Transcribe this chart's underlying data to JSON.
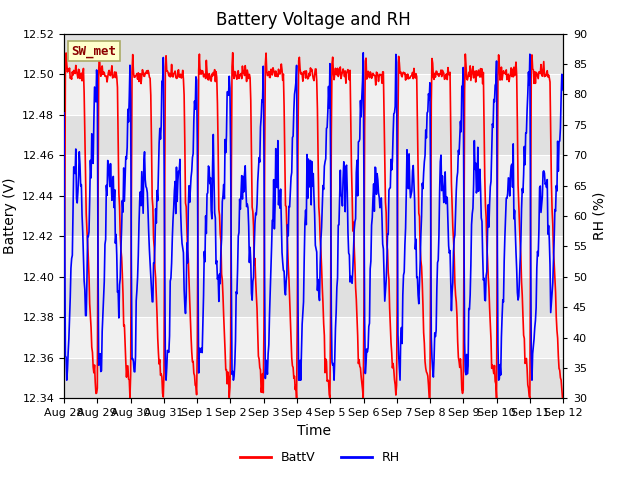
{
  "title": "Battery Voltage and RH",
  "xlabel": "Time",
  "ylabel_left": "Battery (V)",
  "ylabel_right": "RH (%)",
  "legend_label": "SW_met",
  "series": [
    "BattV",
    "RH"
  ],
  "series_colors": [
    "red",
    "blue"
  ],
  "left_ylim": [
    12.34,
    12.52
  ],
  "right_ylim": [
    30,
    90
  ],
  "left_yticks": [
    12.34,
    12.36,
    12.38,
    12.4,
    12.42,
    12.44,
    12.46,
    12.48,
    12.5,
    12.52
  ],
  "right_yticks": [
    30,
    35,
    40,
    45,
    50,
    55,
    60,
    65,
    70,
    75,
    80,
    85,
    90
  ],
  "xtick_labels": [
    "Aug 28",
    "Aug 29",
    "Aug 30",
    "Aug 31",
    "Sep 1",
    "Sep 2",
    "Sep 3",
    "Sep 4",
    "Sep 5",
    "Sep 6",
    "Sep 7",
    "Sep 8",
    "Sep 9",
    "Sep 10",
    "Sep 11",
    "Sep 12"
  ],
  "background_color": "#ffffff",
  "plot_bg_bands": [
    "#e8e8e8",
    "#f8f8f8"
  ],
  "legend_box_color": "#ffffcc",
  "legend_box_edgecolor": "#aaaa66",
  "title_fontsize": 12,
  "axis_label_fontsize": 10,
  "tick_label_fontsize": 8,
  "legend_label_fontsize": 9,
  "line_width": 1.2
}
